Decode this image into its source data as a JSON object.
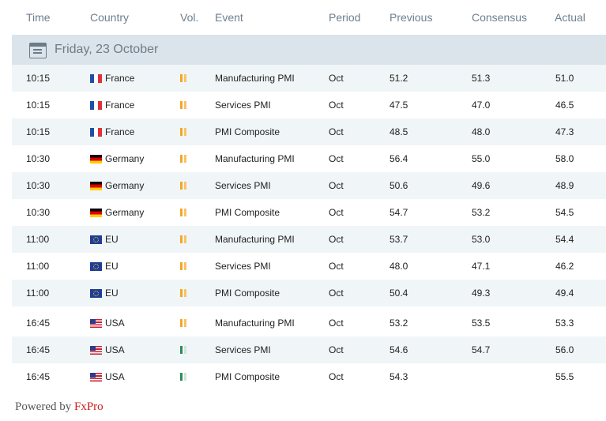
{
  "header": {
    "time": "Time",
    "country": "Country",
    "vol": "Vol.",
    "event": "Event",
    "period": "Period",
    "previous": "Previous",
    "consensus": "Consensus",
    "actual": "Actual"
  },
  "date_bar": {
    "label": "Friday, 23 October",
    "icon": "calendar-icon"
  },
  "rows": [
    {
      "time": "10:15",
      "country": "France",
      "flag": "fr",
      "vol": "orange",
      "event": "Manufacturing PMI",
      "period": "Oct",
      "previous": "51.2",
      "consensus": "51.3",
      "actual": "51.0"
    },
    {
      "time": "10:15",
      "country": "France",
      "flag": "fr",
      "vol": "orange",
      "event": "Services PMI",
      "period": "Oct",
      "previous": "47.5",
      "consensus": "47.0",
      "actual": "46.5"
    },
    {
      "time": "10:15",
      "country": "France",
      "flag": "fr",
      "vol": "orange",
      "event": "PMI Composite",
      "period": "Oct",
      "previous": "48.5",
      "consensus": "48.0",
      "actual": "47.3"
    },
    {
      "time": "10:30",
      "country": "Germany",
      "flag": "de",
      "vol": "orange",
      "event": "Manufacturing PMI",
      "period": "Oct",
      "previous": "56.4",
      "consensus": "55.0",
      "actual": "58.0"
    },
    {
      "time": "10:30",
      "country": "Germany",
      "flag": "de",
      "vol": "orange",
      "event": "Services PMI",
      "period": "Oct",
      "previous": "50.6",
      "consensus": "49.6",
      "actual": "48.9"
    },
    {
      "time": "10:30",
      "country": "Germany",
      "flag": "de",
      "vol": "orange",
      "event": "PMI Composite",
      "period": "Oct",
      "previous": "54.7",
      "consensus": "53.2",
      "actual": "54.5"
    },
    {
      "time": "11:00",
      "country": "EU",
      "flag": "eu",
      "vol": "orange",
      "event": "Manufacturing PMI",
      "period": "Oct",
      "previous": "53.7",
      "consensus": "53.0",
      "actual": "54.4"
    },
    {
      "time": "11:00",
      "country": "EU",
      "flag": "eu",
      "vol": "orange",
      "event": "Services PMI",
      "period": "Oct",
      "previous": "48.0",
      "consensus": "47.1",
      "actual": "46.2"
    },
    {
      "time": "11:00",
      "country": "EU",
      "flag": "eu",
      "vol": "orange",
      "event": "PMI Composite",
      "period": "Oct",
      "previous": "50.4",
      "consensus": "49.3",
      "actual": "49.4"
    },
    {
      "time": "16:45",
      "country": "USA",
      "flag": "us",
      "vol": "orange",
      "event": "Manufacturing PMI",
      "period": "Oct",
      "previous": "53.2",
      "consensus": "53.5",
      "actual": "53.3"
    },
    {
      "time": "16:45",
      "country": "USA",
      "flag": "us",
      "vol": "green",
      "event": "Services PMI",
      "period": "Oct",
      "previous": "54.6",
      "consensus": "54.7",
      "actual": "56.0"
    },
    {
      "time": "16:45",
      "country": "USA",
      "flag": "us",
      "vol": "green",
      "event": "PMI Composite",
      "period": "Oct",
      "previous": "54.3",
      "consensus": "",
      "actual": "55.5"
    }
  ],
  "footer": {
    "prefix": "Powered by",
    "brand": "FxPro"
  },
  "colors": {
    "header_text": "#6d7f8f",
    "date_bar_bg": "#dbe4ea",
    "alt_row_bg": "#f0f5f8",
    "brand": "#cc1b1b",
    "vol_orange": "#f5a623",
    "vol_green": "#2e8b57"
  }
}
